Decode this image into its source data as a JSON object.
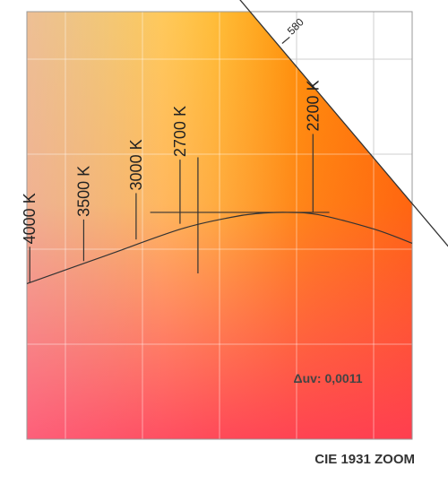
{
  "chart_data": {
    "type": "chromaticity",
    "title": "CIE 1931 ZOOM",
    "x_range": [
      0.38,
      0.58
    ],
    "y_range": [
      0.32,
      0.5
    ],
    "grid": true,
    "spectral_locus": [
      {
        "x": 0.475,
        "y": 0.52
      },
      {
        "x": 0.6,
        "y": 0.4
      }
    ],
    "wavelength_marks": [
      {
        "label": "580",
        "x": 0.5125,
        "y": 0.4866
      }
    ],
    "planckian_locus": [
      {
        "x": 0.38,
        "y": 0.3855
      },
      {
        "x": 0.42,
        "y": 0.397
      },
      {
        "x": 0.46,
        "y": 0.4085
      },
      {
        "x": 0.4865,
        "y": 0.4135
      },
      {
        "x": 0.4995,
        "y": 0.415
      },
      {
        "x": 0.515,
        "y": 0.4155
      },
      {
        "x": 0.5315,
        "y": 0.4145
      },
      {
        "x": 0.56,
        "y": 0.4085
      },
      {
        "x": 0.58,
        "y": 0.4025
      }
    ],
    "cct_marks": [
      {
        "label": "4000 K",
        "x": 0.3815,
        "y": 0.386,
        "len": 0.015
      },
      {
        "label": "3500 K",
        "x": 0.4095,
        "y": 0.395,
        "len": 0.0175
      },
      {
        "label": "3000 K",
        "x": 0.4367,
        "y": 0.4041,
        "len": 0.0195
      },
      {
        "label": "2700 K",
        "x": 0.4595,
        "y": 0.4107,
        "len": 0.027
      },
      {
        "label": "2200 K",
        "x": 0.5285,
        "y": 0.4155,
        "len": 0.033
      }
    ],
    "measurement": {
      "x": 0.4688,
      "y_top": 0.4387,
      "y_bottom": 0.3898,
      "x_left": 0.444,
      "x_right": 0.537,
      "y_mid": 0.4155
    },
    "annotation": "Δuv: 0,0011"
  }
}
